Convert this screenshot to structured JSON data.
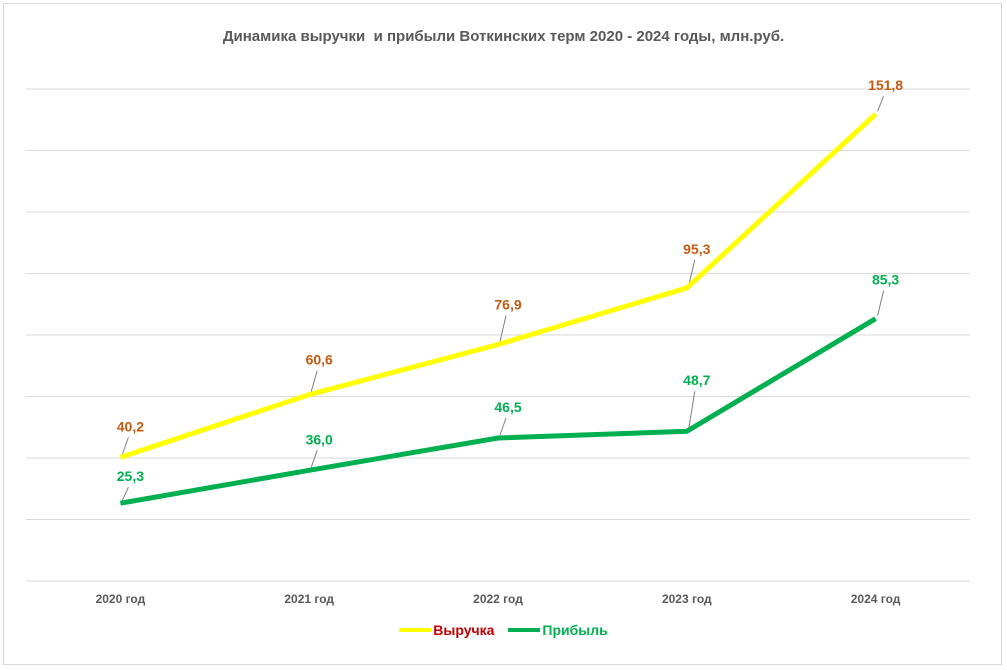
{
  "chart_data": {
    "type": "line",
    "title": "Динамика выручки  и прибыли Воткинских терм 2020 - 2024 годы, млн.руб.",
    "categories": [
      "2020 год",
      "2021 год",
      "2022 год",
      "2023 год",
      "2024 год"
    ],
    "series": [
      {
        "name": "Выручка",
        "values": [
          40.2,
          60.6,
          76.9,
          95.3,
          151.8
        ],
        "labels": [
          "40,2",
          "60,6",
          "76,9",
          "95,3",
          "151,8"
        ],
        "color": "#ffff00",
        "label_color": "#c55a11",
        "legend_text_color": "#c00000"
      },
      {
        "name": "Прибыль",
        "values": [
          25.3,
          36.0,
          46.5,
          48.7,
          85.3
        ],
        "labels": [
          "25,3",
          "36,0",
          "46,5",
          "48,7",
          "85,3"
        ],
        "color": "#00b050",
        "label_color": "#00b050",
        "legend_text_color": "#00b050"
      }
    ],
    "ylim": [
      0,
      160
    ],
    "grid": true,
    "legend_position": "bottom",
    "gridline_color": "#d9d9d9"
  }
}
